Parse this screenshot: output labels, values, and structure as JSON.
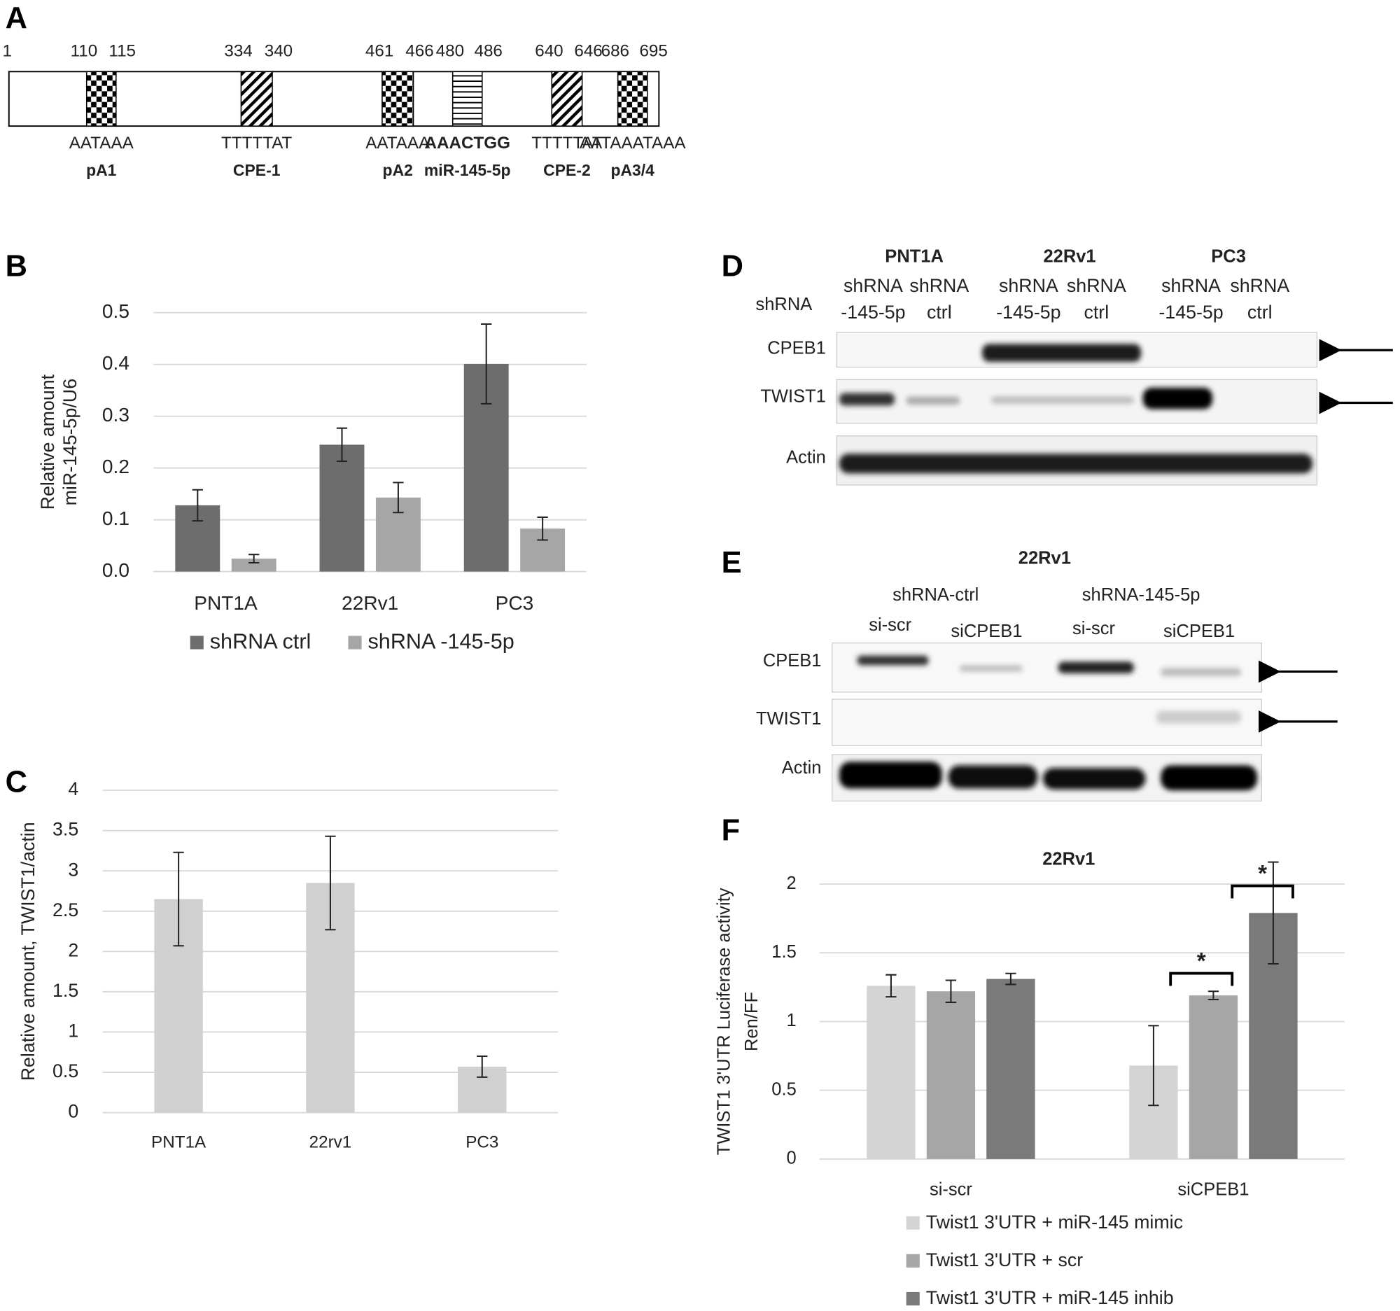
{
  "panel_labels": [
    "A",
    "B",
    "C",
    "D",
    "E",
    "F"
  ],
  "diagram_a": {
    "start": 1,
    "features": [
      {
        "start": 110,
        "end": 115,
        "pattern": "checker",
        "sequence": "AATAAA",
        "name": "pA1"
      },
      {
        "start": 334,
        "end": 340,
        "pattern": "hatch",
        "sequence": "TTTTTAT",
        "name": "CPE-1"
      },
      {
        "start": 461,
        "end": 466,
        "pattern": "checker",
        "sequence": "AATAAA",
        "name": "pA2"
      },
      {
        "start": 480,
        "end": 486,
        "pattern": "hlines",
        "sequence": "AAACTGG",
        "name": "miR-145-5p",
        "bold_sequence": true
      },
      {
        "start": 640,
        "end": 646,
        "pattern": "hatch",
        "sequence": "TTTTTAT",
        "name": "CPE-2"
      },
      {
        "start": 686,
        "end": 695,
        "pattern": "checker",
        "sequence": "AATAAATAAA",
        "name": "pA3/4"
      }
    ]
  },
  "chart_data": [
    {
      "type": "bar",
      "ylabel": [
        "Relative amount",
        "miR-145-5p/U6"
      ],
      "categories": [
        "PNT1A",
        "22Rv1",
        "PC3"
      ],
      "series": [
        {
          "name": "shRNA ctrl",
          "color": "#6d6d6d",
          "values": [
            0.128,
            0.245,
            0.401
          ],
          "errors": [
            0.03,
            0.032,
            0.077
          ]
        },
        {
          "name": "shRNA -145-5p",
          "color": "#a6a6a6",
          "values": [
            0.025,
            0.143,
            0.083
          ],
          "errors": [
            0.008,
            0.029,
            0.022
          ]
        }
      ],
      "ylim": [
        0,
        0.5
      ],
      "yticks": [
        {
          "value": 0,
          "label": "0.0"
        },
        0.1,
        0.2,
        0.3,
        0.4,
        0.5
      ],
      "grid": true,
      "legend": "bottom"
    },
    {
      "type": "bar",
      "ylabel": [
        "Relative amount, TWIST1/actin"
      ],
      "categories": [
        "PNT1A",
        "22rv1",
        "PC3"
      ],
      "values": [
        2.65,
        2.85,
        0.57
      ],
      "errors": [
        0.58,
        0.58,
        0.13
      ],
      "color": "#d0d0d0",
      "ylim": [
        0,
        4
      ],
      "yticks": [
        0,
        0.5,
        1,
        1.5,
        2,
        2.5,
        3,
        3.5,
        4
      ],
      "grid": true
    },
    {
      "type": "bar",
      "title": "22Rv1",
      "ylabel": [
        "TWIST1 3'UTR Luciferase  activity",
        "Ren/FF"
      ],
      "categories": [
        "si-scr",
        "siCPEB1"
      ],
      "series": [
        {
          "name": "Twist1 3'UTR + miR-145 mimic",
          "color": "#d4d4d4",
          "values": [
            1.26,
            0.68
          ],
          "errors": [
            0.08,
            0.29
          ]
        },
        {
          "name": "Twist1 3'UTR + scr",
          "color": "#a6a6a6",
          "values": [
            1.22,
            1.19
          ],
          "errors": [
            0.08,
            0.03
          ]
        },
        {
          "name": "Twist1 3'UTR + miR-145 inhib",
          "color": "#7a7a7a",
          "values": [
            1.31,
            1.79
          ],
          "errors": [
            0.04,
            0.37
          ]
        }
      ],
      "ylim": [
        0,
        2
      ],
      "yticks": [
        0,
        0.5,
        1,
        1.5,
        2
      ],
      "grid": true,
      "legend": "bottom",
      "annotations": [
        "*",
        "*"
      ]
    }
  ],
  "blot_d": {
    "cell_lines": [
      "PNT1A",
      "22Rv1",
      "PC3"
    ],
    "row_header": "shRNA",
    "lanes": [
      [
        "shRNA",
        "-145-5p"
      ],
      [
        "shRNA",
        "ctrl"
      ],
      [
        "shRNA",
        "-145-5p"
      ],
      [
        "shRNA",
        "ctrl"
      ],
      [
        "shRNA",
        "-145-5p"
      ],
      [
        "shRNA",
        "ctrl"
      ]
    ],
    "rows": [
      "CPEB1",
      "TWIST1",
      "Actin"
    ]
  },
  "blot_e": {
    "title": "22Rv1",
    "groups": [
      "shRNA-ctrl",
      "shRNA-145-5p"
    ],
    "lanes": [
      "si-scr",
      "siCPEB1",
      "si-scr",
      "siCPEB1"
    ],
    "rows": [
      "CPEB1",
      "TWIST1",
      "Actin"
    ]
  }
}
